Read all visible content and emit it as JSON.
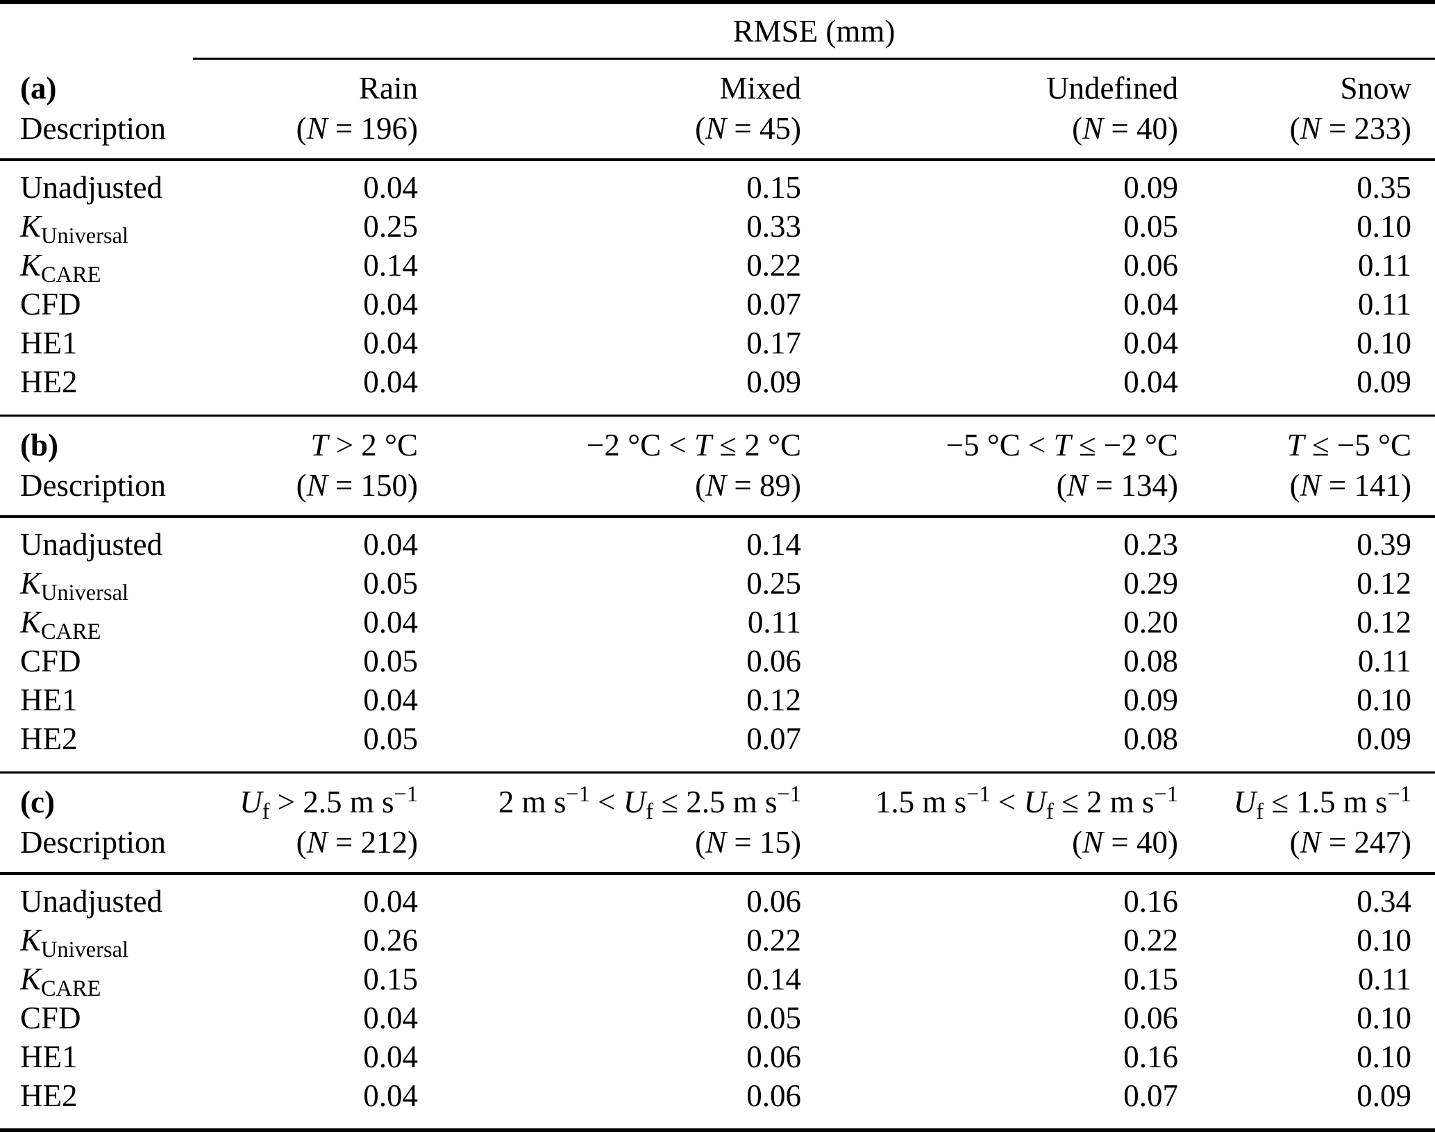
{
  "table": {
    "unit_header": "RMSE (mm)",
    "row_labels": [
      [
        {
          "t": "Unadjusted"
        }
      ],
      [
        {
          "t": "K",
          "i": true
        },
        {
          "t": "Universal",
          "sub": true
        }
      ],
      [
        {
          "t": "K",
          "i": true
        },
        {
          "t": "CARE",
          "sub": true
        }
      ],
      [
        {
          "t": "CFD"
        }
      ],
      [
        {
          "t": "HE1"
        }
      ],
      [
        {
          "t": "HE2"
        }
      ]
    ],
    "sections": [
      {
        "label": [
          {
            "t": "(a)",
            "b": true
          }
        ],
        "desc": "Description",
        "col_headers": [
          {
            "line1": [
              {
                "t": "Rain"
              }
            ],
            "line2": [
              {
                "t": "("
              },
              {
                "t": "N",
                "i": true
              },
              {
                "t": " = 196)"
              }
            ]
          },
          {
            "line1": [
              {
                "t": "Mixed"
              }
            ],
            "line2": [
              {
                "t": "("
              },
              {
                "t": "N",
                "i": true
              },
              {
                "t": " = 45)"
              }
            ]
          },
          {
            "line1": [
              {
                "t": "Undefined"
              }
            ],
            "line2": [
              {
                "t": "("
              },
              {
                "t": "N",
                "i": true
              },
              {
                "t": " = 40)"
              }
            ]
          },
          {
            "line1": [
              {
                "t": "Snow"
              }
            ],
            "line2": [
              {
                "t": "("
              },
              {
                "t": "N",
                "i": true
              },
              {
                "t": " = 233)"
              }
            ]
          }
        ],
        "rows": [
          {
            "values": [
              "0.04",
              "0.15",
              "0.09",
              "0.35"
            ]
          },
          {
            "values": [
              "0.25",
              "0.33",
              "0.05",
              "0.10"
            ]
          },
          {
            "values": [
              "0.14",
              "0.22",
              "0.06",
              "0.11"
            ]
          },
          {
            "values": [
              "0.04",
              "0.07",
              "0.04",
              "0.11"
            ]
          },
          {
            "values": [
              "0.04",
              "0.17",
              "0.04",
              "0.10"
            ]
          },
          {
            "values": [
              "0.04",
              "0.09",
              "0.04",
              "0.09"
            ]
          }
        ]
      },
      {
        "label": [
          {
            "t": "(b)",
            "b": true
          }
        ],
        "desc": "Description",
        "col_headers": [
          {
            "line1": [
              {
                "t": "T",
                "i": true
              },
              {
                "t": " > 2 °C"
              }
            ],
            "line2": [
              {
                "t": "("
              },
              {
                "t": "N",
                "i": true
              },
              {
                "t": " = 150)"
              }
            ]
          },
          {
            "line1": [
              {
                "t": "−2 °C < "
              },
              {
                "t": "T",
                "i": true
              },
              {
                "t": " ≤ 2 °C"
              }
            ],
            "line2": [
              {
                "t": "("
              },
              {
                "t": "N",
                "i": true
              },
              {
                "t": " = 89)"
              }
            ]
          },
          {
            "line1": [
              {
                "t": "−5 °C < "
              },
              {
                "t": "T",
                "i": true
              },
              {
                "t": " ≤ −2 °C"
              }
            ],
            "line2": [
              {
                "t": "("
              },
              {
                "t": "N",
                "i": true
              },
              {
                "t": " = 134)"
              }
            ]
          },
          {
            "line1": [
              {
                "t": "T",
                "i": true
              },
              {
                "t": " ≤ −5 °C"
              }
            ],
            "line2": [
              {
                "t": "("
              },
              {
                "t": "N",
                "i": true
              },
              {
                "t": " = 141)"
              }
            ]
          }
        ],
        "rows": [
          {
            "values": [
              "0.04",
              "0.14",
              "0.23",
              "0.39"
            ]
          },
          {
            "values": [
              "0.05",
              "0.25",
              "0.29",
              "0.12"
            ]
          },
          {
            "values": [
              "0.04",
              "0.11",
              "0.20",
              "0.12"
            ]
          },
          {
            "values": [
              "0.05",
              "0.06",
              "0.08",
              "0.11"
            ]
          },
          {
            "values": [
              "0.04",
              "0.12",
              "0.09",
              "0.10"
            ]
          },
          {
            "values": [
              "0.05",
              "0.07",
              "0.08",
              "0.09"
            ]
          }
        ]
      },
      {
        "label": [
          {
            "t": "(c)",
            "b": true
          }
        ],
        "desc": "Description",
        "col_headers": [
          {
            "line1": [
              {
                "t": "U",
                "i": true
              },
              {
                "t": "f",
                "sub": true
              },
              {
                "t": " > 2.5 m s"
              },
              {
                "t": "−1",
                "sup": true
              }
            ],
            "line2": [
              {
                "t": "("
              },
              {
                "t": "N",
                "i": true
              },
              {
                "t": " = 212)"
              }
            ]
          },
          {
            "line1": [
              {
                "t": "2 m s"
              },
              {
                "t": "−1",
                "sup": true
              },
              {
                "t": " < "
              },
              {
                "t": "U",
                "i": true
              },
              {
                "t": "f",
                "sub": true
              },
              {
                "t": " ≤ 2.5 m s"
              },
              {
                "t": "−1",
                "sup": true
              }
            ],
            "line2": [
              {
                "t": "("
              },
              {
                "t": "N",
                "i": true
              },
              {
                "t": " = 15)"
              }
            ]
          },
          {
            "line1": [
              {
                "t": "1.5 m s"
              },
              {
                "t": "−1",
                "sup": true
              },
              {
                "t": " < "
              },
              {
                "t": "U",
                "i": true
              },
              {
                "t": "f",
                "sub": true
              },
              {
                "t": " ≤ 2 m s"
              },
              {
                "t": "−1",
                "sup": true
              }
            ],
            "line2": [
              {
                "t": "("
              },
              {
                "t": "N",
                "i": true
              },
              {
                "t": " = 40)"
              }
            ]
          },
          {
            "line1": [
              {
                "t": "U",
                "i": true
              },
              {
                "t": "f",
                "sub": true
              },
              {
                "t": " ≤ 1.5 m s"
              },
              {
                "t": "−1",
                "sup": true
              }
            ],
            "line2": [
              {
                "t": "("
              },
              {
                "t": "N",
                "i": true
              },
              {
                "t": " = 247)"
              }
            ]
          }
        ],
        "rows": [
          {
            "values": [
              "0.04",
              "0.06",
              "0.16",
              "0.34"
            ]
          },
          {
            "values": [
              "0.26",
              "0.22",
              "0.22",
              "0.10"
            ]
          },
          {
            "values": [
              "0.15",
              "0.14",
              "0.15",
              "0.11"
            ]
          },
          {
            "values": [
              "0.04",
              "0.05",
              "0.06",
              "0.10"
            ]
          },
          {
            "values": [
              "0.04",
              "0.06",
              "0.16",
              "0.10"
            ]
          },
          {
            "values": [
              "0.04",
              "0.06",
              "0.07",
              "0.09"
            ]
          }
        ]
      }
    ]
  },
  "colors": {
    "text": "#000000",
    "background": "#ffffff",
    "rule": "#000000"
  }
}
